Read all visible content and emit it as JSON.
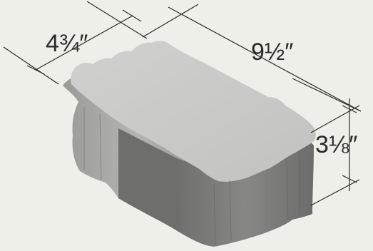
{
  "dimensions": {
    "width_label": "4¾″",
    "length_label": "9½″",
    "height_label": "3⅛″"
  },
  "colors": {
    "background": "#efefe9",
    "paver_top": "#c9c9c7",
    "paver_left": "#a9a9a7",
    "paver_front": "#7c7c7a",
    "line": "#2a2a2a"
  }
}
